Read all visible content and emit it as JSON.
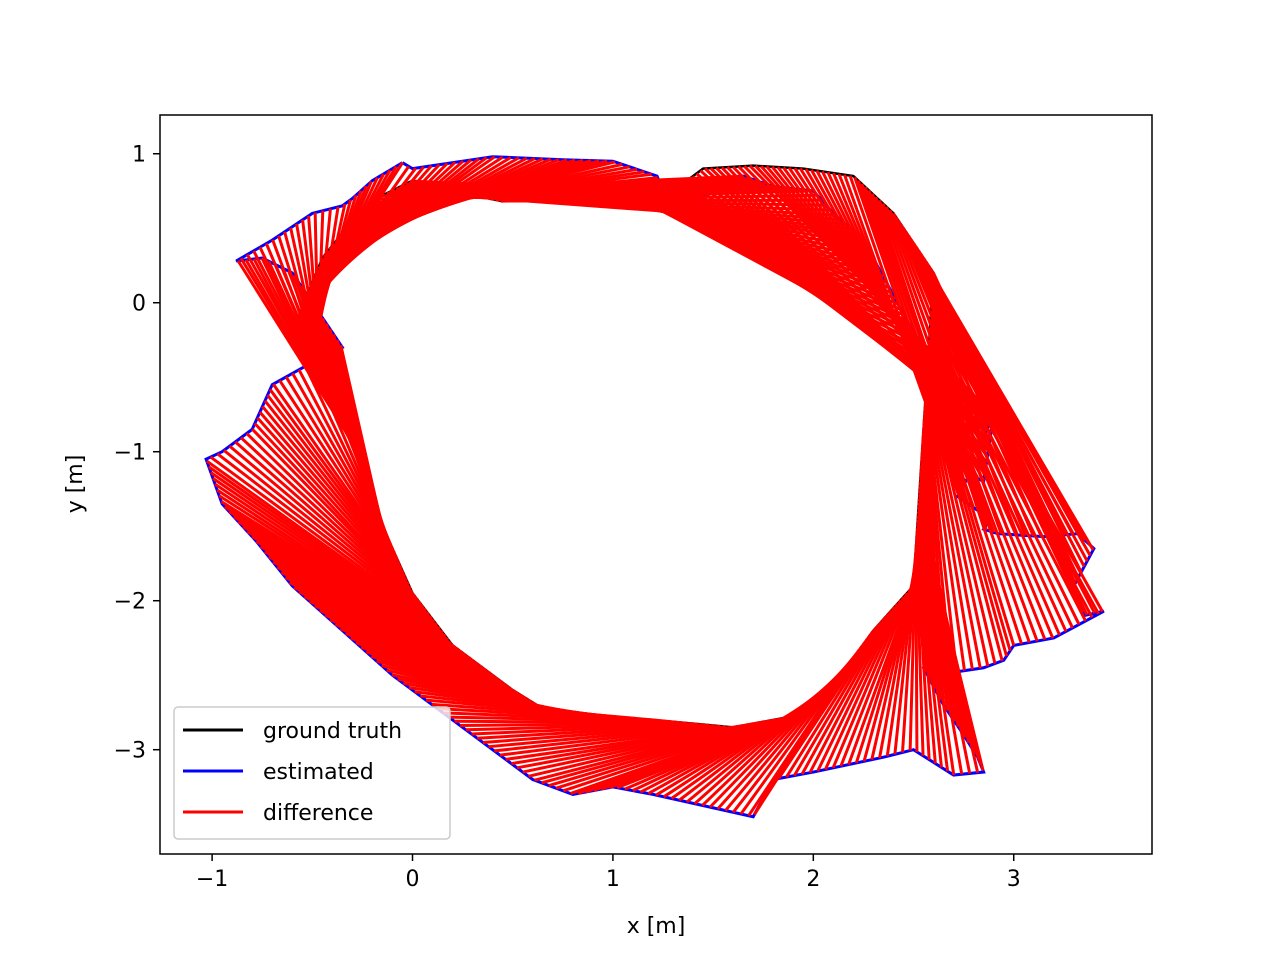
{
  "chart_data": {
    "type": "line",
    "title": "",
    "xlabel": "x [m]",
    "ylabel": "y [m]",
    "xlim": [
      -1.26,
      3.69
    ],
    "ylim": [
      -3.7,
      1.26
    ],
    "xticks": [
      -1,
      0,
      1,
      2,
      3
    ],
    "yticks": [
      -3,
      -2,
      -1,
      0,
      1
    ],
    "xtick_labels": [
      "−1",
      "0",
      "1",
      "2",
      "3"
    ],
    "ytick_labels": [
      "−3",
      "−2",
      "−1",
      "0",
      "1"
    ],
    "grid": false,
    "legend_position": "lower-left",
    "legend": [
      {
        "label": "ground truth",
        "color": "#000000"
      },
      {
        "label": "estimated",
        "color": "#0000ff"
      },
      {
        "label": "difference",
        "color": "#ff0000"
      }
    ],
    "series": [
      {
        "name": "ground truth",
        "color": "#000000",
        "x": [
          -0.6,
          -0.45,
          -0.3,
          -0.15,
          0.0,
          0.2,
          0.45,
          0.7,
          0.95,
          1.2,
          1.45,
          1.7,
          1.95,
          2.2,
          2.4,
          2.6,
          2.5,
          2.3,
          2.0,
          1.6,
          1.2,
          0.8,
          0.5,
          0.2,
          0.0,
          -0.15,
          -0.25,
          -0.35,
          -0.45,
          -0.55,
          -0.6
        ],
        "y": [
          -0.2,
          0.3,
          0.55,
          0.72,
          0.82,
          0.75,
          0.68,
          0.72,
          0.8,
          0.65,
          0.9,
          0.92,
          0.9,
          0.85,
          0.6,
          0.2,
          -1.9,
          -2.2,
          -2.75,
          -2.85,
          -2.8,
          -2.85,
          -2.6,
          -2.3,
          -1.95,
          -1.5,
          -1.1,
          -0.8,
          -0.6,
          -0.4,
          -0.2
        ]
      },
      {
        "name": "estimated",
        "color": "#0000ff",
        "x": [
          -0.05,
          0.0,
          0.4,
          0.75,
          1.0,
          1.22,
          1.3,
          1.5,
          1.65,
          1.8,
          2.0,
          2.1,
          2.25,
          2.5,
          2.6,
          2.75,
          2.85,
          2.9,
          2.85,
          2.78,
          2.72,
          2.88,
          2.85,
          2.92,
          3.15,
          3.32,
          3.4,
          3.3,
          3.35,
          3.45,
          3.2,
          3.0,
          2.95,
          2.85,
          2.7,
          2.6,
          2.55,
          2.65,
          2.75,
          2.82,
          2.85,
          2.7,
          2.5,
          2.35,
          2.0,
          1.8,
          1.7,
          1.2,
          1.0,
          0.8,
          0.6,
          0.3,
          -0.1,
          -0.35,
          -0.6,
          -0.78,
          -0.95,
          -1.03,
          -0.95,
          -0.8,
          -0.7,
          -0.5,
          -0.35,
          -0.6,
          -0.75,
          -0.88,
          -0.7,
          -0.5,
          -0.35,
          -0.3,
          -0.2,
          -0.05
        ],
        "y": [
          0.94,
          0.9,
          0.98,
          0.96,
          0.95,
          0.85,
          0.6,
          0.75,
          0.85,
          0.78,
          0.75,
          0.6,
          0.42,
          -0.2,
          -0.55,
          -0.75,
          -0.9,
          -0.75,
          -1.2,
          -1.15,
          -1.3,
          -1.45,
          -1.52,
          -1.55,
          -1.57,
          -1.55,
          -1.65,
          -1.9,
          -2.1,
          -2.07,
          -2.25,
          -2.3,
          -2.4,
          -2.45,
          -2.48,
          -2.35,
          -2.45,
          -2.7,
          -2.9,
          -3.05,
          -3.15,
          -3.17,
          -3.0,
          -3.05,
          -3.15,
          -3.2,
          -3.45,
          -3.3,
          -3.25,
          -3.3,
          -3.2,
          -2.9,
          -2.5,
          -2.2,
          -1.9,
          -1.6,
          -1.35,
          -1.05,
          -1.0,
          -0.85,
          -0.55,
          -0.4,
          -0.3,
          0.2,
          0.3,
          0.28,
          0.42,
          0.6,
          0.65,
          0.7,
          0.82,
          0.94
        ]
      }
    ],
    "difference_style": "red segments connecting estimated to ground truth at each timestamp"
  }
}
